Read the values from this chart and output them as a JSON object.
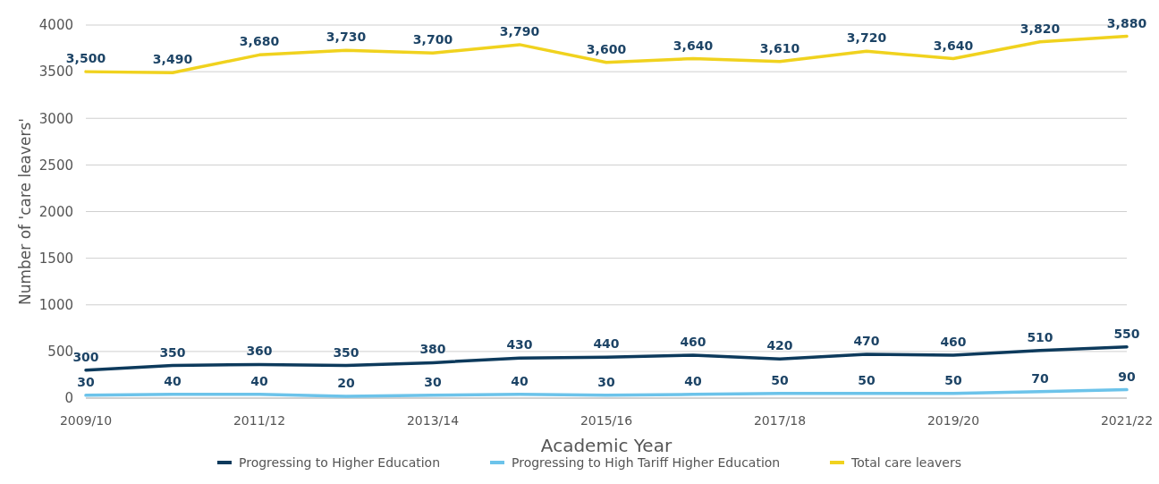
{
  "chart_data": {
    "type": "line",
    "xlabel": "Academic Year",
    "ylabel": "Number of 'care leavers'",
    "categories": [
      "2009/10",
      null,
      "2011/12",
      null,
      "2013/14",
      null,
      "2015/16",
      null,
      "2017/18",
      null,
      "2019/20",
      null,
      "2021/22"
    ],
    "series": [
      {
        "name": "Progressing to Higher Education",
        "color": "#0d3a5c",
        "values": [
          300,
          350,
          360,
          350,
          380,
          430,
          440,
          460,
          420,
          470,
          460,
          510,
          550
        ],
        "value_labels": [
          "300",
          "350",
          "360",
          "350",
          "380",
          "430",
          "440",
          "460",
          "420",
          "470",
          "460",
          "510",
          "550"
        ]
      },
      {
        "name": "Progressing to High Tariff Higher Education",
        "color": "#6cc3ea",
        "values": [
          30,
          40,
          40,
          20,
          30,
          40,
          30,
          40,
          50,
          50,
          50,
          70,
          90
        ],
        "value_labels": [
          "30",
          "40",
          "40",
          "20",
          "30",
          "40",
          "30",
          "40",
          "50",
          "50",
          "50",
          "70",
          "90"
        ]
      },
      {
        "name": "Total care leavers",
        "color": "#f0d21e",
        "values": [
          3500,
          3490,
          3680,
          3730,
          3700,
          3790,
          3600,
          3640,
          3610,
          3720,
          3640,
          3820,
          3880
        ],
        "value_labels": [
          "3,500",
          "3,490",
          "3,680",
          "3,730",
          "3,700",
          "3,790",
          "3,600",
          "3,640",
          "3,610",
          "3,720",
          "3,640",
          "3,820",
          "3,880"
        ]
      }
    ],
    "ylim": [
      0,
      4000
    ],
    "yticks": [
      0,
      500,
      1000,
      1500,
      2000,
      2500,
      3000,
      3500,
      4000
    ],
    "grid": "y",
    "legend": "bottom",
    "marker": "none",
    "line_style": "solid"
  }
}
